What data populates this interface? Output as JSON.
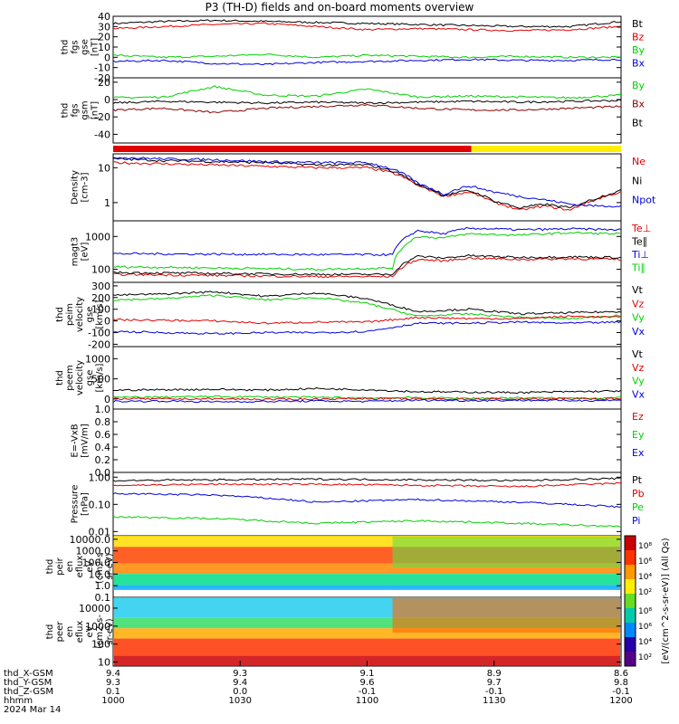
{
  "figure_title": "P3 (TH-D) fields and on-board moments overview",
  "colors": {
    "black": "#000000",
    "red": "#e00000",
    "green": "#00d000",
    "blue": "#0000e0",
    "darkred": "#8b0000",
    "yellow": "#ffee00",
    "cyan": "#00c0ff"
  },
  "chart_data": [
    {
      "type": "line",
      "id": "fgs_gse",
      "ylabel_lines": [
        "thd",
        "fgs",
        "gse",
        "[nT]"
      ],
      "ylim": [
        -20,
        40
      ],
      "scale": "linear",
      "ytick_labels": [
        "40",
        "30",
        "20",
        "10",
        "0",
        "-10",
        "-20"
      ],
      "ytick_values": [
        40,
        30,
        20,
        10,
        0,
        -10,
        -20
      ],
      "legend": [
        "Bt",
        "Bz",
        "By",
        "Bx"
      ],
      "series": [
        {
          "name": "Bt",
          "color": "black",
          "x": [
            0,
            0.1,
            0.2,
            0.3,
            0.4,
            0.5,
            0.6,
            0.7,
            0.8,
            0.9,
            1
          ],
          "values": [
            33,
            35,
            36,
            35,
            34,
            33,
            32,
            31,
            30,
            30,
            35
          ]
        },
        {
          "name": "Bz",
          "color": "red",
          "x": [
            0,
            0.1,
            0.2,
            0.3,
            0.4,
            0.5,
            0.6,
            0.7,
            0.8,
            0.9,
            1
          ],
          "values": [
            28,
            30,
            32,
            33,
            30,
            27,
            28,
            27,
            26,
            27,
            30
          ]
        },
        {
          "name": "By",
          "color": "green",
          "x": [
            0,
            0.1,
            0.2,
            0.3,
            0.4,
            0.5,
            0.6,
            0.7,
            0.8,
            0.9,
            1
          ],
          "values": [
            2,
            0,
            1,
            3,
            0,
            2,
            1,
            0,
            1,
            0,
            0
          ]
        },
        {
          "name": "Bx",
          "color": "blue",
          "x": [
            0,
            0.1,
            0.2,
            0.3,
            0.4,
            0.5,
            0.6,
            0.7,
            0.8,
            0.9,
            1
          ],
          "values": [
            -4,
            -3,
            -6,
            -7,
            -5,
            -4,
            -3,
            -2,
            -3,
            -3,
            -2
          ]
        }
      ]
    },
    {
      "type": "line",
      "id": "fgs_gsm",
      "ylabel_lines": [
        "thd",
        "fgs",
        "gsm",
        "[nT]"
      ],
      "ylim": [
        -50,
        25
      ],
      "scale": "linear",
      "ytick_labels": [
        "20",
        "0",
        "-20",
        "-40"
      ],
      "ytick_values": [
        20,
        0,
        -20,
        -40
      ],
      "legend": [
        "By",
        "Bx",
        "Bt"
      ],
      "series": [
        {
          "name": "By",
          "color": "green",
          "x": [
            0,
            0.1,
            0.2,
            0.3,
            0.4,
            0.5,
            0.6,
            0.7,
            0.8,
            0.9,
            1
          ],
          "values": [
            2,
            3,
            15,
            5,
            4,
            12,
            3,
            4,
            3,
            2,
            5
          ]
        },
        {
          "name": "Bt",
          "color": "black",
          "x": [
            0,
            0.1,
            0.2,
            0.3,
            0.4,
            0.5,
            0.6,
            0.7,
            0.8,
            0.9,
            1
          ],
          "values": [
            -4,
            -2,
            -3,
            -4,
            -3,
            -4,
            -3,
            -2,
            -3,
            -2,
            -1
          ]
        },
        {
          "name": "Bx",
          "color": "darkred",
          "x": [
            0,
            0.1,
            0.2,
            0.3,
            0.4,
            0.5,
            0.6,
            0.7,
            0.8,
            0.9,
            1
          ],
          "values": [
            -12,
            -10,
            -15,
            -10,
            -8,
            -6,
            -10,
            -12,
            -12,
            -10,
            -8
          ]
        }
      ]
    },
    {
      "type": "bar",
      "id": "mode_bar",
      "segments": [
        {
          "from": 0,
          "to": 0.705,
          "color": "red"
        },
        {
          "from": 0.705,
          "to": 1,
          "color": "yellow"
        }
      ]
    },
    {
      "type": "line",
      "id": "density",
      "ylabel_lines": [
        "Density",
        "[cm-3]"
      ],
      "ylim": [
        0.3,
        25
      ],
      "scale": "log",
      "ytick_labels": [
        "10",
        "1"
      ],
      "ytick_values": [
        10,
        1
      ],
      "legend": [
        "Ne",
        "Ni",
        "Npot"
      ],
      "series": [
        {
          "name": "Ne",
          "color": "red",
          "x": [
            0,
            0.1,
            0.2,
            0.3,
            0.4,
            0.5,
            0.55,
            0.6,
            0.65,
            0.7,
            0.75,
            0.8,
            0.85,
            0.9,
            0.95,
            1
          ],
          "values": [
            14,
            13,
            12,
            11,
            10,
            10,
            7,
            3,
            1.5,
            2,
            1,
            0.6,
            0.8,
            0.6,
            1.2,
            2
          ]
        },
        {
          "name": "Ni",
          "color": "black",
          "x": [
            0,
            0.1,
            0.2,
            0.3,
            0.4,
            0.5,
            0.55,
            0.6,
            0.65,
            0.7,
            0.75,
            0.8,
            0.85,
            0.9,
            0.95,
            1
          ],
          "values": [
            18,
            16,
            15,
            14,
            12,
            12,
            8,
            3.2,
            1.6,
            2.2,
            1.1,
            0.7,
            0.9,
            0.7,
            1.3,
            2.2
          ]
        },
        {
          "name": "Npot",
          "color": "blue",
          "x": [
            0,
            0.1,
            0.2,
            0.3,
            0.4,
            0.5,
            0.55,
            0.6,
            0.65,
            0.7,
            0.75,
            0.8,
            0.85,
            0.9,
            0.95,
            1
          ],
          "values": [
            20,
            18,
            17,
            15,
            14,
            14,
            9,
            3.5,
            1.7,
            3,
            2,
            1.5,
            1.2,
            0.9,
            0.8,
            0.8
          ]
        }
      ]
    },
    {
      "type": "line",
      "id": "magt3",
      "ylabel_lines": [
        "magt3",
        "[eV]"
      ],
      "ylim": [
        40,
        3000
      ],
      "scale": "log",
      "ytick_labels": [
        "1000",
        "100"
      ],
      "ytick_values": [
        1000,
        100
      ],
      "legend": [
        "Te⊥",
        "Te∥",
        "Ti⊥",
        "Ti∥"
      ],
      "series": [
        {
          "name": "Ti⊥",
          "color": "blue",
          "x": [
            0,
            0.2,
            0.4,
            0.55,
            0.6,
            0.65,
            0.7,
            0.8,
            0.9,
            1
          ],
          "values": [
            300,
            290,
            280,
            280,
            1500,
            1200,
            1800,
            1600,
            1700,
            1600
          ]
        },
        {
          "name": "Ti∥",
          "color": "green",
          "x": [
            0,
            0.2,
            0.4,
            0.55,
            0.6,
            0.65,
            0.7,
            0.8,
            0.9,
            1
          ],
          "values": [
            120,
            110,
            100,
            110,
            1000,
            900,
            1200,
            1100,
            1300,
            1200
          ]
        },
        {
          "name": "Te⊥",
          "color": "red",
          "x": [
            0,
            0.2,
            0.4,
            0.55,
            0.6,
            0.65,
            0.7,
            0.8,
            0.9,
            1
          ],
          "values": [
            70,
            65,
            60,
            60,
            200,
            180,
            220,
            200,
            210,
            200
          ]
        },
        {
          "name": "Te∥",
          "color": "black",
          "x": [
            0,
            0.2,
            0.4,
            0.55,
            0.6,
            0.65,
            0.7,
            0.8,
            0.9,
            1
          ],
          "values": [
            80,
            75,
            70,
            70,
            250,
            220,
            260,
            230,
            240,
            230
          ]
        }
      ]
    },
    {
      "type": "line",
      "id": "peim_gse",
      "ylabel_lines": [
        "thd",
        "peim",
        "velocity",
        "gse",
        "[km/s]"
      ],
      "ylim": [
        -220,
        330
      ],
      "scale": "linear",
      "ytick_labels": [
        "300",
        "200",
        "100",
        "0",
        "-100",
        "-200"
      ],
      "ytick_values": [
        300,
        200,
        100,
        0,
        -100,
        -200
      ],
      "legend": [
        "Vt",
        "Vz",
        "Vy",
        "Vx"
      ],
      "series": [
        {
          "name": "Vt",
          "color": "black",
          "x": [
            0,
            0.1,
            0.2,
            0.3,
            0.4,
            0.5,
            0.6,
            0.7,
            0.8,
            0.9,
            1
          ],
          "values": [
            220,
            230,
            250,
            210,
            240,
            190,
            80,
            100,
            60,
            70,
            80
          ]
        },
        {
          "name": "Vy",
          "color": "green",
          "x": [
            0,
            0.1,
            0.2,
            0.3,
            0.4,
            0.5,
            0.6,
            0.7,
            0.8,
            0.9,
            1
          ],
          "values": [
            180,
            190,
            220,
            180,
            200,
            150,
            40,
            60,
            30,
            20,
            50
          ]
        },
        {
          "name": "Vz",
          "color": "red",
          "x": [
            0,
            0.1,
            0.2,
            0.3,
            0.4,
            0.5,
            0.6,
            0.7,
            0.8,
            0.9,
            1
          ],
          "values": [
            10,
            5,
            0,
            -20,
            -10,
            -10,
            30,
            20,
            20,
            40,
            30
          ]
        },
        {
          "name": "Vx",
          "color": "blue",
          "x": [
            0,
            0.1,
            0.2,
            0.3,
            0.4,
            0.5,
            0.6,
            0.7,
            0.8,
            0.9,
            1
          ],
          "values": [
            -90,
            -100,
            -110,
            -100,
            -100,
            -90,
            -20,
            -20,
            -10,
            -20,
            -10
          ]
        }
      ]
    },
    {
      "type": "line",
      "id": "peem_gse",
      "ylabel_lines": [
        "thd",
        "peem",
        "velocity",
        "gse",
        "[km/s]"
      ],
      "ylim": [
        -250,
        1300
      ],
      "scale": "linear",
      "ytick_labels": [
        "1000",
        "500",
        "0"
      ],
      "ytick_values": [
        1000,
        500,
        0
      ],
      "legend": [
        "Vt",
        "Vz",
        "Vy",
        "Vx"
      ],
      "series": [
        {
          "name": "Vt",
          "color": "black",
          "x": [
            0,
            0.1,
            0.2,
            0.3,
            0.4,
            0.5,
            0.6,
            0.7,
            0.8,
            0.9,
            1
          ],
          "values": [
            220,
            230,
            240,
            220,
            260,
            230,
            180,
            170,
            160,
            180,
            200
          ]
        },
        {
          "name": "Vy",
          "color": "green",
          "x": [
            0,
            0.1,
            0.2,
            0.3,
            0.4,
            0.5,
            0.6,
            0.7,
            0.8,
            0.9,
            1
          ],
          "values": [
            40,
            50,
            60,
            50,
            40,
            30,
            30,
            20,
            30,
            20,
            30
          ]
        },
        {
          "name": "Vz",
          "color": "red",
          "x": [
            0,
            0.1,
            0.2,
            0.3,
            0.4,
            0.5,
            0.6,
            0.7,
            0.8,
            0.9,
            1
          ],
          "values": [
            10,
            0,
            5,
            -10,
            0,
            10,
            0,
            0,
            -5,
            10,
            0
          ]
        },
        {
          "name": "Vx",
          "color": "blue",
          "x": [
            0,
            0.1,
            0.2,
            0.3,
            0.4,
            0.5,
            0.6,
            0.7,
            0.8,
            0.9,
            1
          ],
          "values": [
            -60,
            -50,
            -70,
            -60,
            -50,
            -60,
            -30,
            -40,
            -30,
            -40,
            -30
          ]
        }
      ]
    },
    {
      "type": "line",
      "id": "efield",
      "ylabel_lines": [
        "E=-VxB",
        "[mV/m]"
      ],
      "ylim": [
        0,
        1
      ],
      "scale": "linear",
      "ytick_labels": [
        "1.0",
        "0.8",
        "0.6",
        "0.4",
        "0.2",
        "0.0"
      ],
      "ytick_values": [
        1.0,
        0.8,
        0.6,
        0.4,
        0.2,
        0.0
      ],
      "legend": [
        "Ez",
        "Ey",
        "Ex"
      ],
      "series": []
    },
    {
      "type": "line",
      "id": "pressure",
      "ylabel_lines": [
        "Pressure",
        "[nPa]"
      ],
      "ylim": [
        0.007,
        1.5
      ],
      "scale": "log",
      "ytick_labels": [
        "1.00",
        "0.10",
        "0.01"
      ],
      "ytick_values": [
        1,
        0.1,
        0.01
      ],
      "legend": [
        "Pt",
        "Pb",
        "Pe",
        "Pi"
      ],
      "series": [
        {
          "name": "Pt",
          "color": "black",
          "x": [
            0,
            0.2,
            0.4,
            0.6,
            0.8,
            1
          ],
          "values": [
            0.75,
            0.8,
            0.85,
            0.8,
            0.75,
            0.9
          ]
        },
        {
          "name": "Pb",
          "color": "red",
          "x": [
            0,
            0.2,
            0.4,
            0.6,
            0.8,
            1
          ],
          "values": [
            0.5,
            0.55,
            0.55,
            0.5,
            0.45,
            0.6
          ]
        },
        {
          "name": "Pi",
          "color": "blue",
          "x": [
            0,
            0.2,
            0.4,
            0.6,
            0.8,
            1
          ],
          "values": [
            0.25,
            0.22,
            0.12,
            0.15,
            0.12,
            0.08
          ]
        },
        {
          "name": "Pe",
          "color": "green",
          "x": [
            0,
            0.2,
            0.4,
            0.6,
            0.8,
            1
          ],
          "values": [
            0.035,
            0.03,
            0.02,
            0.025,
            0.02,
            0.015
          ]
        }
      ]
    },
    {
      "type": "heatmap",
      "id": "peir",
      "ylabel_lines": [
        "thd",
        "peir",
        "en",
        "eflux",
        "eV",
        "(cm2-s-",
        "sr-eV)"
      ],
      "ylim": [
        0.1,
        20000
      ],
      "scale": "log",
      "ytick_labels": [
        "10000.0",
        "1000.0",
        "100.0",
        "10.0",
        "1.0",
        "0.1"
      ],
      "ytick_values": [
        10000,
        1000,
        100,
        10,
        1,
        0.1
      ]
    },
    {
      "type": "heatmap",
      "id": "peer",
      "ylabel_lines": [
        "thd",
        "peer",
        "en",
        "eflux",
        "eV",
        "(cm2-s-",
        "sr-eV)"
      ],
      "ylim": [
        6,
        40000
      ],
      "scale": "log",
      "ytick_labels": [
        "10000",
        "1000",
        "100",
        "10"
      ],
      "ytick_values": [
        10000,
        1000,
        100,
        10
      ]
    }
  ],
  "colorbar": {
    "label": "[eV/(cm^2-s-sr-eV)] (All Qs)",
    "ticks_top": [
      "10⁸",
      "10⁶",
      "10⁴",
      "10²"
    ],
    "ticks_bottom": [
      "10⁸",
      "10⁶",
      "10⁴",
      "10²"
    ]
  },
  "x_axis": {
    "rows": [
      {
        "label": "thd_X-GSM",
        "values": [
          "9.4",
          "9.3",
          "9.1",
          "8.9",
          "8.6"
        ]
      },
      {
        "label": "thd_Y-GSM",
        "values": [
          "9.3",
          "9.4",
          "9.6",
          "9.7",
          "9.8"
        ]
      },
      {
        "label": "thd_Z-GSM",
        "values": [
          "0.1",
          "0.0",
          "-0.1",
          "-0.1",
          "-0.1"
        ]
      },
      {
        "label": "hhmm",
        "values": [
          "1000",
          "1030",
          "1100",
          "1130",
          "1200"
        ]
      }
    ],
    "date": "2024 Mar 14"
  }
}
